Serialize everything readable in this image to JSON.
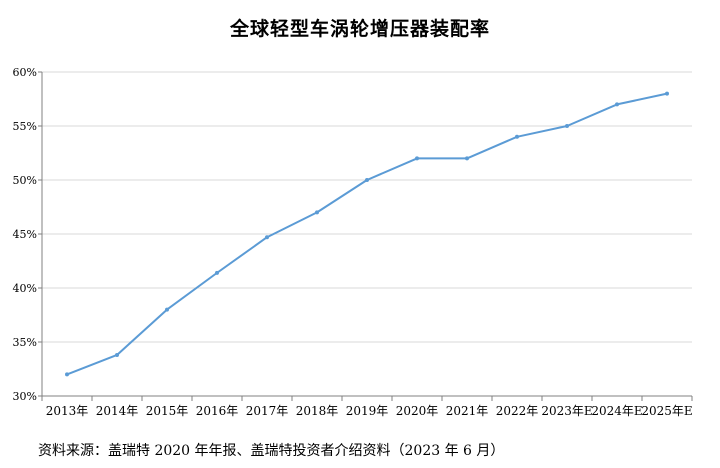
{
  "chart_data": {
    "type": "line",
    "title": "全球轻型车涡轮增压器装配率",
    "xlabel": "",
    "ylabel": "",
    "categories": [
      "2013年",
      "2014年",
      "2015年",
      "2016年",
      "2017年",
      "2018年",
      "2019年",
      "2020年",
      "2021年",
      "2022年",
      "2023年E",
      "2024年E",
      "2025年E"
    ],
    "series": [
      {
        "values": [
          0.32,
          0.338,
          0.38,
          0.414,
          0.447,
          0.47,
          0.5,
          0.52,
          0.52,
          0.54,
          0.55,
          0.57,
          0.58
        ]
      }
    ],
    "ylim": [
      0.3,
      0.6
    ],
    "yticks": [
      0.3,
      0.35,
      0.4,
      0.45,
      0.5,
      0.55,
      0.6
    ],
    "ytick_labels": [
      "30%",
      "35%",
      "40%",
      "45%",
      "50%",
      "55%",
      "60%"
    ],
    "grid": true,
    "legend": "none",
    "line_color": "#5B9BD5",
    "grid_color": "#D9D9D9",
    "axis_color": "#808080"
  },
  "footer": {
    "source": "资料来源：盖瑞特 2020 年年报、盖瑞特投资者介绍资料（2023 年 6 月）"
  }
}
